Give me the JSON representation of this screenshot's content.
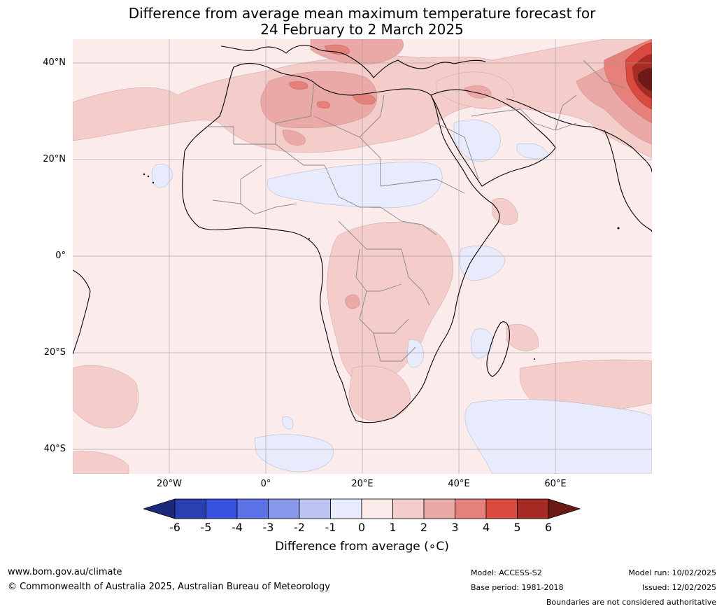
{
  "title_line1": "Difference from average mean maximum temperature forecast for",
  "title_line2": "24 February to 2 March 2025",
  "latitude_labels": [
    "40°N",
    "20°N",
    "0°",
    "20°S",
    "40°S"
  ],
  "longitude_labels": [
    "20°W",
    "0°",
    "20°E",
    "40°E",
    "60°E"
  ],
  "colorbar": {
    "tick_labels": [
      "-6",
      "-5",
      "-4",
      "-3",
      "-2",
      "-1",
      "0",
      "1",
      "2",
      "3",
      "4",
      "5",
      "6"
    ],
    "colors": [
      "#1a2a7a",
      "#2a3fb0",
      "#3651e0",
      "#5a72e6",
      "#8797ea",
      "#bcc5f2",
      "#e8ebfb",
      "#fbeceb",
      "#f4cdcb",
      "#eaa9a6",
      "#e5807a",
      "#d94a40",
      "#a82a24",
      "#6b1a16"
    ],
    "title": "Difference from average (∘C)"
  },
  "footer": {
    "website": "www.bom.gov.au/climate",
    "copyright": "© Commonwealth of Australia 2025, Australian Bureau of Meteorology",
    "model": "Model: ACCESS-S2",
    "base_period": "Base period: 1981-2018",
    "model_run": "Model run: 10/02/2025",
    "issued": "Issued: 12/02/2025",
    "disclaimer": "Boundaries are not considered authoritative"
  }
}
